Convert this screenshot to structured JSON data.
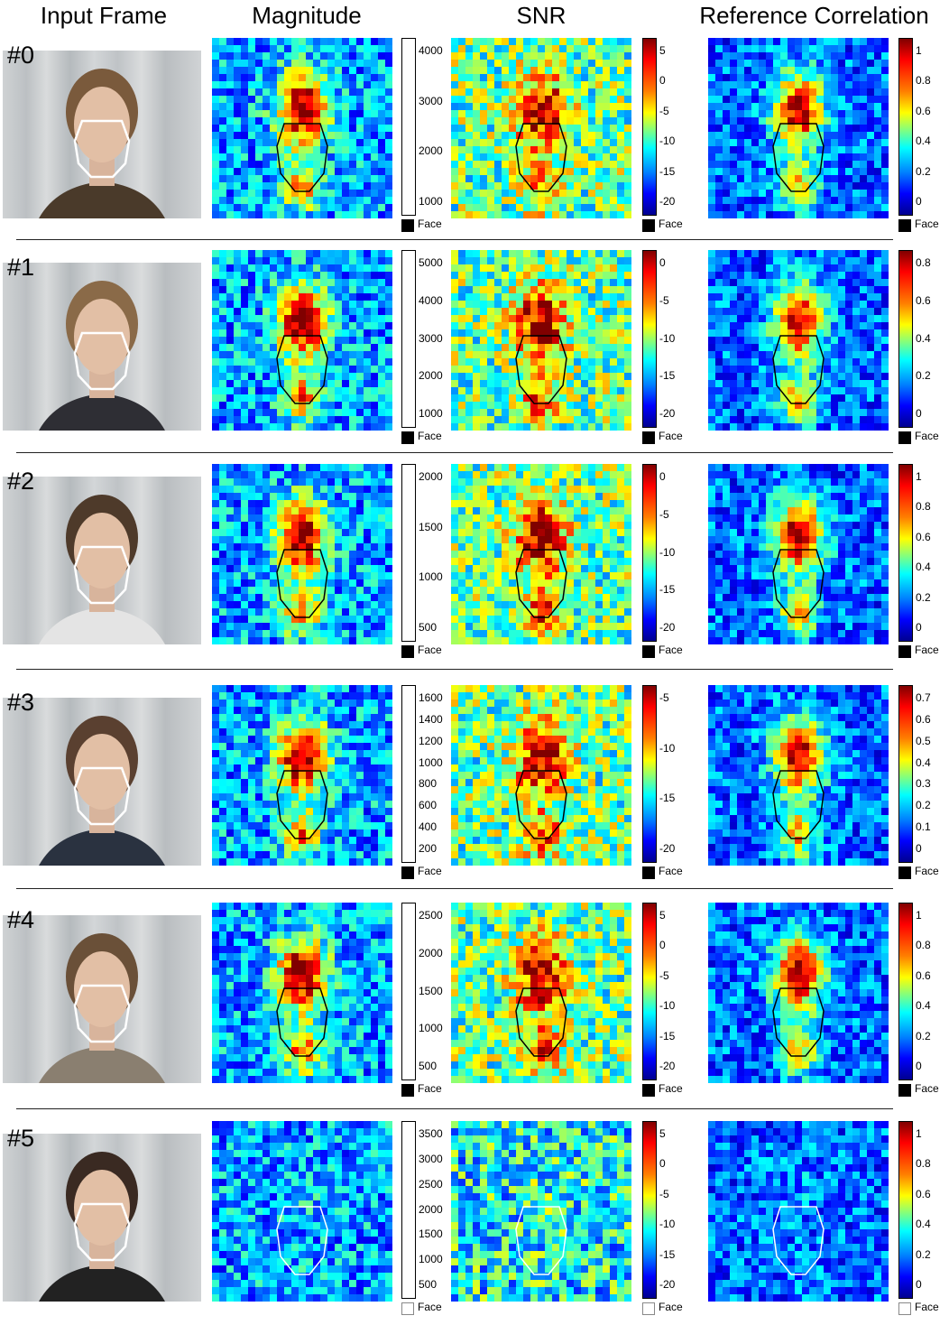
{
  "headers": [
    "Input Frame",
    "Magnitude",
    "SNR",
    "Reference Correlation"
  ],
  "legend_label": "Face",
  "colormap": "jet",
  "rows": [
    {
      "label": "#0",
      "face_outline": "black",
      "magnitude_ticks": [
        "4000",
        "3000",
        "2000",
        "1000"
      ],
      "snr_ticks": [
        "5",
        "0",
        "-5",
        "-10",
        "-15",
        "-20"
      ],
      "ref_ticks": [
        "1",
        "0.8",
        "0.6",
        "0.4",
        "0.2",
        "0"
      ]
    },
    {
      "label": "#1",
      "face_outline": "black",
      "magnitude_ticks": [
        "5000",
        "4000",
        "3000",
        "2000",
        "1000"
      ],
      "snr_ticks": [
        "0",
        "-5",
        "-10",
        "-15",
        "-20"
      ],
      "ref_ticks": [
        "0.8",
        "0.6",
        "0.4",
        "0.2",
        "0"
      ]
    },
    {
      "label": "#2",
      "face_outline": "black",
      "magnitude_ticks": [
        "2000",
        "1500",
        "1000",
        "500"
      ],
      "snr_ticks": [
        "0",
        "-5",
        "-10",
        "-15",
        "-20"
      ],
      "ref_ticks": [
        "1",
        "0.8",
        "0.6",
        "0.4",
        "0.2",
        "0"
      ]
    },
    {
      "label": "#3",
      "face_outline": "black",
      "magnitude_ticks": [
        "1600",
        "1400",
        "1200",
        "1000",
        "800",
        "600",
        "400",
        "200"
      ],
      "snr_ticks": [
        "-5",
        "-10",
        "-15",
        "-20"
      ],
      "ref_ticks": [
        "0.7",
        "0.6",
        "0.5",
        "0.4",
        "0.3",
        "0.2",
        "0.1",
        "0"
      ]
    },
    {
      "label": "#4",
      "face_outline": "black",
      "magnitude_ticks": [
        "2500",
        "2000",
        "1500",
        "1000",
        "500"
      ],
      "snr_ticks": [
        "5",
        "0",
        "-5",
        "-10",
        "-15",
        "-20"
      ],
      "ref_ticks": [
        "1",
        "0.8",
        "0.6",
        "0.4",
        "0.2",
        "0"
      ]
    },
    {
      "label": "#5",
      "face_outline": "white",
      "magnitude_ticks": [
        "3500",
        "3000",
        "2500",
        "2000",
        "1500",
        "1000",
        "500"
      ],
      "snr_ticks": [
        "5",
        "0",
        "-5",
        "-10",
        "-15",
        "-20"
      ],
      "ref_ticks": [
        "1",
        "0.8",
        "0.6",
        "0.4",
        "0.2",
        "0"
      ]
    }
  ]
}
